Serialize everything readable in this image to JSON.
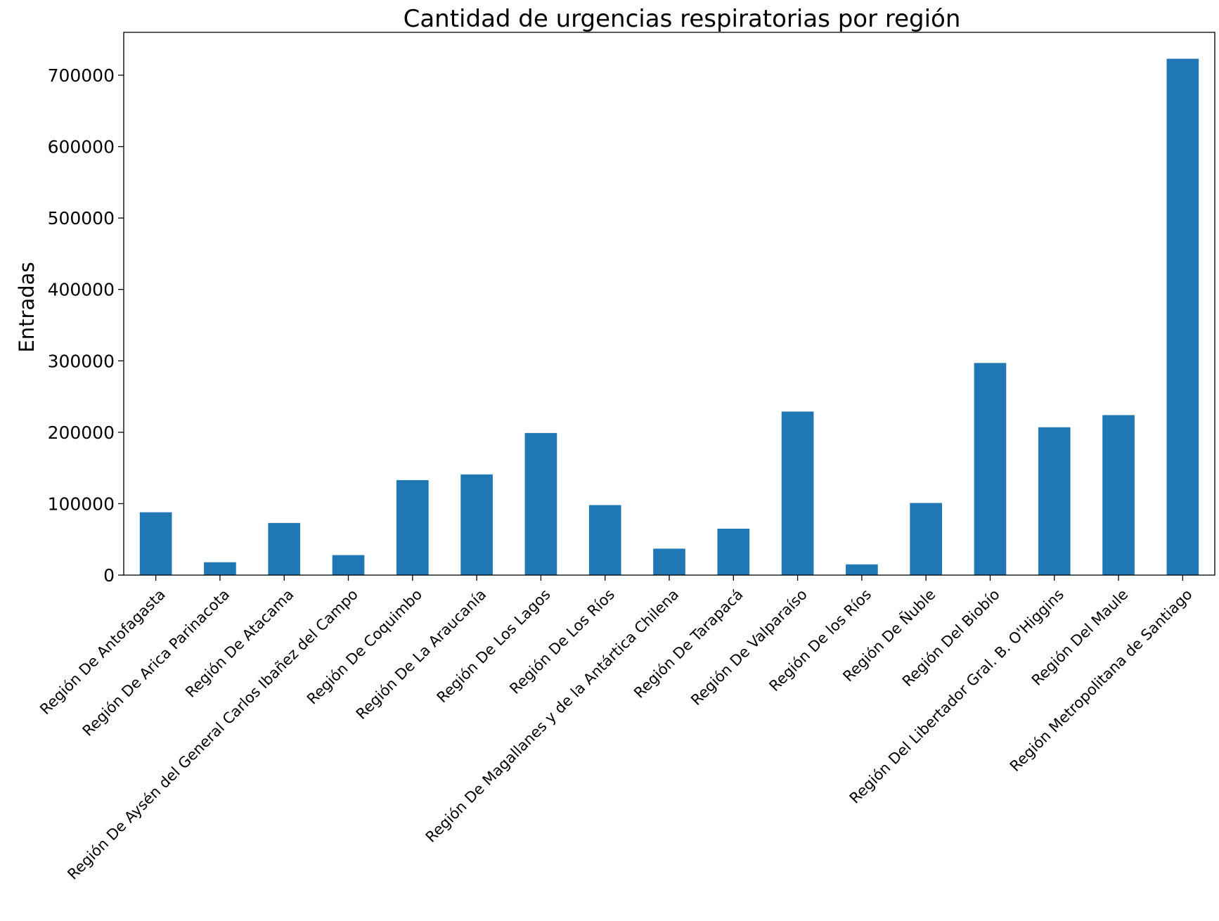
{
  "chart_data": {
    "type": "bar",
    "title": "Cantidad de urgencias respiratorias por región",
    "xlabel": "",
    "ylabel": "Entradas",
    "ylim": [
      0,
      760000
    ],
    "yticks": [
      0,
      100000,
      200000,
      300000,
      400000,
      500000,
      600000,
      700000
    ],
    "ytick_labels": [
      "0",
      "100000",
      "200000",
      "300000",
      "400000",
      "500000",
      "600000",
      "700000"
    ],
    "grid": false,
    "legend": "none",
    "bar_color": "#1f77b4",
    "categories": [
      "Región De Antofagasta",
      "Región De Arica Parinacota",
      "Región De Atacama",
      "Región De Aysén del General Carlos Ibañez del Campo",
      "Región De Coquimbo",
      "Región De La Araucanía",
      "Región De Los Lagos",
      "Región De Los Ríos",
      "Región De Magallanes y de la Antártica Chilena",
      "Región De Tarapacá",
      "Región De Valparaíso",
      "Región De los Ríos",
      "Región De Ñuble",
      "Región Del Biobío",
      "Región Del Libertador Gral. B. O'Higgins",
      "Región Del Maule",
      "Región Metropolitana de Santiago"
    ],
    "values": [
      88000,
      18000,
      73000,
      28000,
      133000,
      141000,
      199000,
      98000,
      37000,
      65000,
      229000,
      15000,
      101000,
      297000,
      207000,
      224000,
      723000
    ]
  }
}
